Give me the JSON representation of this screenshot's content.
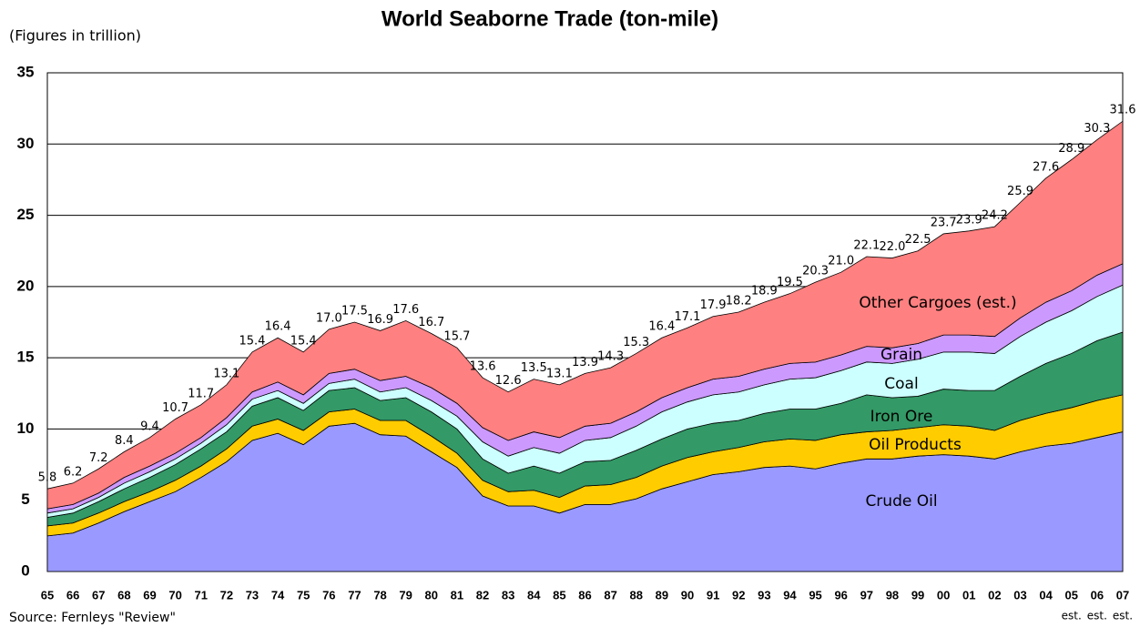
{
  "chart_data": {
    "type": "stacked_area",
    "title": "World Seaborne Trade (ton-mile)",
    "subtitle": "(Figures in trillion)",
    "source": "Source: Fernleys \"Review\"",
    "categories": [
      "65",
      "66",
      "67",
      "68",
      "69",
      "70",
      "71",
      "72",
      "73",
      "74",
      "75",
      "76",
      "77",
      "78",
      "79",
      "80",
      "81",
      "82",
      "83",
      "84",
      "85",
      "86",
      "87",
      "88",
      "89",
      "90",
      "91",
      "92",
      "93",
      "94",
      "95",
      "96",
      "97",
      "98",
      "99",
      "00",
      "01",
      "02",
      "03",
      "04",
      "05",
      "06",
      "07"
    ],
    "x_notes": [
      {
        "category": "05",
        "text": "est."
      },
      {
        "category": "06",
        "text": "est."
      },
      {
        "category": "07",
        "text": "est."
      }
    ],
    "series": [
      {
        "name": "Crude Oil",
        "color": "#9999ff",
        "values": [
          2.5,
          2.7,
          3.4,
          4.2,
          4.9,
          5.6,
          6.6,
          7.7,
          9.2,
          9.7,
          8.9,
          10.2,
          10.4,
          9.6,
          9.5,
          8.4,
          7.3,
          5.3,
          4.6,
          4.6,
          4.1,
          4.7,
          4.7,
          5.1,
          5.8,
          6.3,
          6.8,
          7.0,
          7.3,
          7.4,
          7.2,
          7.6,
          7.9,
          7.9,
          8.1,
          8.2,
          8.1,
          7.9,
          8.4,
          8.8,
          9.0,
          9.4,
          9.8
        ]
      },
      {
        "name": "Oil Products",
        "color": "#ffcc00",
        "values": [
          0.7,
          0.7,
          0.7,
          0.7,
          0.7,
          0.8,
          0.8,
          0.9,
          1.0,
          1.0,
          1.0,
          1.0,
          1.0,
          1.0,
          1.1,
          1.1,
          1.0,
          1.1,
          1.0,
          1.1,
          1.1,
          1.3,
          1.4,
          1.5,
          1.6,
          1.7,
          1.6,
          1.7,
          1.8,
          1.9,
          2.0,
          2.0,
          1.9,
          2.0,
          2.0,
          2.1,
          2.1,
          2.0,
          2.2,
          2.3,
          2.5,
          2.6,
          2.6
        ]
      },
      {
        "name": "Iron Ore",
        "color": "#339966",
        "values": [
          0.6,
          0.7,
          0.8,
          0.9,
          1.0,
          1.1,
          1.2,
          1.2,
          1.4,
          1.5,
          1.4,
          1.5,
          1.5,
          1.4,
          1.6,
          1.7,
          1.7,
          1.5,
          1.3,
          1.7,
          1.7,
          1.7,
          1.7,
          1.9,
          1.9,
          2.0,
          2.0,
          1.9,
          2.0,
          2.1,
          2.2,
          2.2,
          2.6,
          2.3,
          2.2,
          2.5,
          2.5,
          2.8,
          3.1,
          3.5,
          3.8,
          4.2,
          4.4
        ]
      },
      {
        "name": "Coal",
        "color": "#ccffff",
        "values": [
          0.3,
          0.3,
          0.3,
          0.4,
          0.4,
          0.4,
          0.4,
          0.5,
          0.5,
          0.5,
          0.5,
          0.5,
          0.6,
          0.6,
          0.7,
          0.8,
          0.9,
          1.2,
          1.2,
          1.3,
          1.4,
          1.5,
          1.6,
          1.7,
          1.9,
          1.9,
          2.0,
          2.0,
          2.0,
          2.1,
          2.2,
          2.3,
          2.3,
          2.4,
          2.6,
          2.6,
          2.7,
          2.6,
          2.8,
          2.9,
          3.0,
          3.1,
          3.3
        ]
      },
      {
        "name": "Grain",
        "color": "#cc99ff",
        "values": [
          0.3,
          0.3,
          0.3,
          0.4,
          0.4,
          0.4,
          0.4,
          0.5,
          0.5,
          0.6,
          0.6,
          0.7,
          0.7,
          0.8,
          0.8,
          0.9,
          0.9,
          1.0,
          1.1,
          1.1,
          1.1,
          1.0,
          1.0,
          1.0,
          1.0,
          1.0,
          1.1,
          1.1,
          1.1,
          1.1,
          1.1,
          1.1,
          1.1,
          1.1,
          1.1,
          1.2,
          1.2,
          1.2,
          1.3,
          1.4,
          1.4,
          1.5,
          1.5
        ]
      },
      {
        "name": "Other Cargoes (est.)",
        "color": "#ff8080",
        "values": [
          1.4,
          1.5,
          1.7,
          1.8,
          2.0,
          2.4,
          2.3,
          2.3,
          2.8,
          3.1,
          3.0,
          3.1,
          3.3,
          3.5,
          3.9,
          3.8,
          3.9,
          3.5,
          3.4,
          3.7,
          3.7,
          3.7,
          3.9,
          4.1,
          4.2,
          4.2,
          4.4,
          4.5,
          4.7,
          4.9,
          5.6,
          5.8,
          6.3,
          6.3,
          6.5,
          7.1,
          7.3,
          7.7,
          8.1,
          8.7,
          9.2,
          9.5,
          10.0
        ]
      }
    ],
    "total_labels": [
      "5.8",
      "6.2",
      "7.2",
      "8.4",
      "9.4",
      "10.7",
      "11.7",
      "13.1",
      "15.4",
      "16.4",
      "15.4",
      "17.0",
      "17.5",
      "16.9",
      "17.6",
      "16.7",
      "15.7",
      "13.6",
      "12.6",
      "13.5",
      "13.1",
      "13.9",
      "14.3",
      "15.3",
      "16.4",
      "17.1",
      "17.9",
      "18.2",
      "18.9",
      "19.5",
      "20.3",
      "21.0",
      "22.1",
      "22.0",
      "22.5",
      "23.7",
      "23.9",
      "24.2",
      "25.9",
      "27.6",
      "28.9",
      "30.3",
      "31.6"
    ],
    "ylim": [
      0,
      35
    ],
    "yticks": [
      0,
      5,
      10,
      15,
      20,
      25,
      30,
      35
    ],
    "grid": true
  }
}
